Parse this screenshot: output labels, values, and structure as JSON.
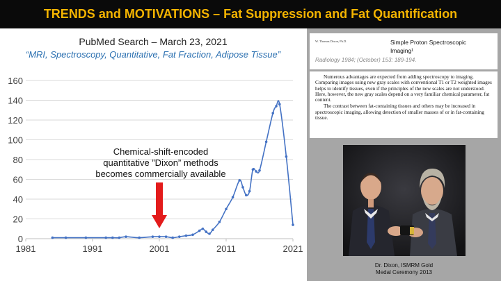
{
  "header": {
    "title": "TRENDS and MOTIVATIONS – Fat Suppression and Fat Quantification"
  },
  "search": {
    "title": "PubMed Search – March 23, 2021",
    "terms": "“MRI, Spectroscopy, Quantitative, Fat Fraction, Adipose Tissue”"
  },
  "annotation": {
    "lines": [
      "Chemical-shift-encoded",
      "quantitative ”Dixon” methods",
      "becomes commercially available"
    ],
    "arrow_year": 2001,
    "arrow_color": "#e31b1b"
  },
  "paper": {
    "author": "W. Thomas Dixon, Ph.D.",
    "title_line1": "Simple Proton Spectroscopic",
    "title_line2": "Imaging¹",
    "citation": "Radiology 1984; (October) 153: 189-194.",
    "abstract_p1": "Numerous advantages are expected from adding spectroscopy to imaging. Comparing images using new gray scales with conventional T1 or T2 weighted images helps to identify tissues, even if the principles of the new scales are not understood. Here, however, the new gray scales depend on a very familiar chemical parameter, fat content.",
    "abstract_p2": "The contrast between fat-containing tissues and others may be increased in spectroscopic imaging, allowing detection of smaller masses of or in fat-containing tissue."
  },
  "photo": {
    "caption_line1": "Dr. Dixon, ISMRM Gold",
    "caption_line2": "Medal Ceremony 2013"
  },
  "chart_data": {
    "type": "line",
    "ylim": [
      0,
      160
    ],
    "xlim": [
      1981,
      2021
    ],
    "yticks": [
      0,
      20,
      40,
      60,
      80,
      100,
      120,
      140,
      160
    ],
    "xticks": [
      1981,
      1991,
      2001,
      2011,
      2021
    ],
    "grid": "horizontal",
    "series_color": "#4472c4",
    "x": [
      1985,
      1987,
      1990,
      1993,
      1994,
      1995,
      1996,
      1998,
      2000,
      2001,
      2002,
      2003,
      2004,
      2005,
      2006,
      2007,
      2007.5,
      2008,
      2008.5,
      2009,
      2010,
      2011,
      2012,
      2013,
      2013.5,
      2014,
      2014.5,
      2015,
      2015.5,
      2016,
      2017,
      2018,
      2018.5,
      2019,
      2020,
      2021
    ],
    "y": [
      1,
      1,
      1,
      1,
      1,
      1,
      2,
      1,
      2,
      2,
      2,
      1,
      2,
      3,
      4,
      8,
      10,
      7,
      5,
      9,
      17,
      30,
      42,
      59,
      52,
      44,
      48,
      70,
      68,
      69,
      98,
      127,
      134,
      136,
      83,
      14
    ]
  }
}
